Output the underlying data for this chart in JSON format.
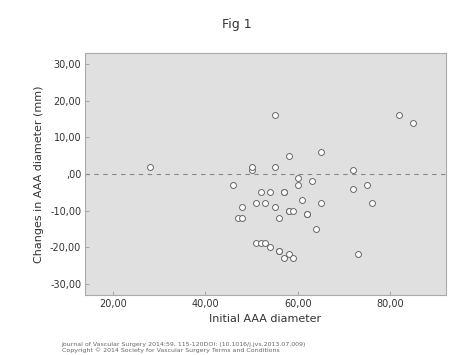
{
  "title": "Fig 1",
  "xlabel": "Initial AAA diameter",
  "ylabel": "Changes in AAA diameter (mm)",
  "xlim": [
    14,
    92
  ],
  "ylim": [
    -33,
    33
  ],
  "xticks": [
    20,
    40,
    60,
    80
  ],
  "yticks": [
    -30,
    -20,
    -10,
    0,
    10,
    20,
    30
  ],
  "xtick_labels": [
    "20,00",
    "40,00",
    "60,00",
    "80,00"
  ],
  "ytick_labels": [
    "-30,00",
    "-20,00",
    "-10,00",
    ",00",
    "10,00",
    "20,00",
    "30,00"
  ],
  "scatter_x": [
    28,
    46,
    47,
    48,
    48,
    50,
    50,
    51,
    51,
    52,
    52,
    53,
    53,
    54,
    54,
    55,
    55,
    55,
    56,
    56,
    56,
    57,
    57,
    57,
    58,
    58,
    58,
    58,
    59,
    59,
    60,
    60,
    61,
    62,
    62,
    63,
    64,
    65,
    65,
    72,
    72,
    73,
    75,
    76,
    82,
    85
  ],
  "scatter_y": [
    2,
    -3,
    -12,
    -12,
    -9,
    1,
    2,
    -8,
    -19,
    -5,
    -19,
    -19,
    -8,
    -20,
    -5,
    -9,
    16,
    2,
    -12,
    -21,
    -21,
    -5,
    -23,
    -5,
    -10,
    -10,
    -22,
    5,
    -10,
    -23,
    -3,
    -1,
    -7,
    -11,
    -11,
    -2,
    -15,
    -8,
    6,
    1,
    -4,
    -22,
    -3,
    -8,
    16,
    14
  ],
  "background_color": "#e0e0e0",
  "fig_background": "#ffffff",
  "marker_facecolor": "white",
  "marker_edgecolor": "#666666",
  "marker_size": 18,
  "marker_linewidth": 0.7,
  "dashed_line_y": 0,
  "dashed_color": "#888888",
  "spine_color": "#aaaaaa",
  "tick_label_fontsize": 7,
  "axis_label_fontsize": 8,
  "title_fontsize": 9,
  "footer_text": "Journal of Vascular Surgery 2014;59, 115-120DOI: (10.1016/j.jvs.2013.07.009)\nCopyright © 2014 Society for Vascular Surgery Terms and Conditions"
}
